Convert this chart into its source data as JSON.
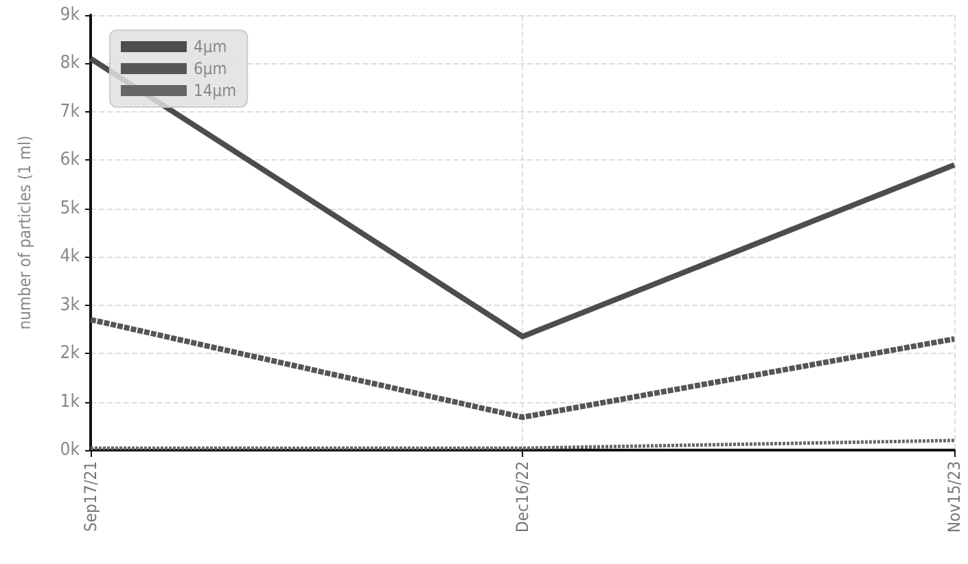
{
  "chart_data": {
    "type": "line",
    "ylabel": "number of particles (1 ml)",
    "categories": [
      "Sep17/21",
      "Dec16/22",
      "Nov15/23"
    ],
    "series": [
      {
        "name": "4μm",
        "color": "#4d4d4d",
        "line_style": "solid",
        "values": [
          8100,
          2350,
          5900
        ]
      },
      {
        "name": "6μm",
        "color": "#555555",
        "line_style": "dashed",
        "values": [
          2700,
          680,
          2300
        ]
      },
      {
        "name": "14μm",
        "color": "#666666",
        "line_style": "dotted",
        "values": [
          40,
          40,
          200
        ]
      }
    ],
    "ylim": [
      0,
      9000
    ],
    "yticks": [
      {
        "value": 0,
        "label": "0k"
      },
      {
        "value": 1000,
        "label": "1k"
      },
      {
        "value": 2000,
        "label": "2k"
      },
      {
        "value": 3000,
        "label": "3k"
      },
      {
        "value": 4000,
        "label": "4k"
      },
      {
        "value": 5000,
        "label": "5k"
      },
      {
        "value": 6000,
        "label": "6k"
      },
      {
        "value": 7000,
        "label": "7k"
      },
      {
        "value": 8000,
        "label": "8k"
      },
      {
        "value": 9000,
        "label": "9k"
      }
    ],
    "grid": true,
    "legend": "top left",
    "marker": "none"
  }
}
